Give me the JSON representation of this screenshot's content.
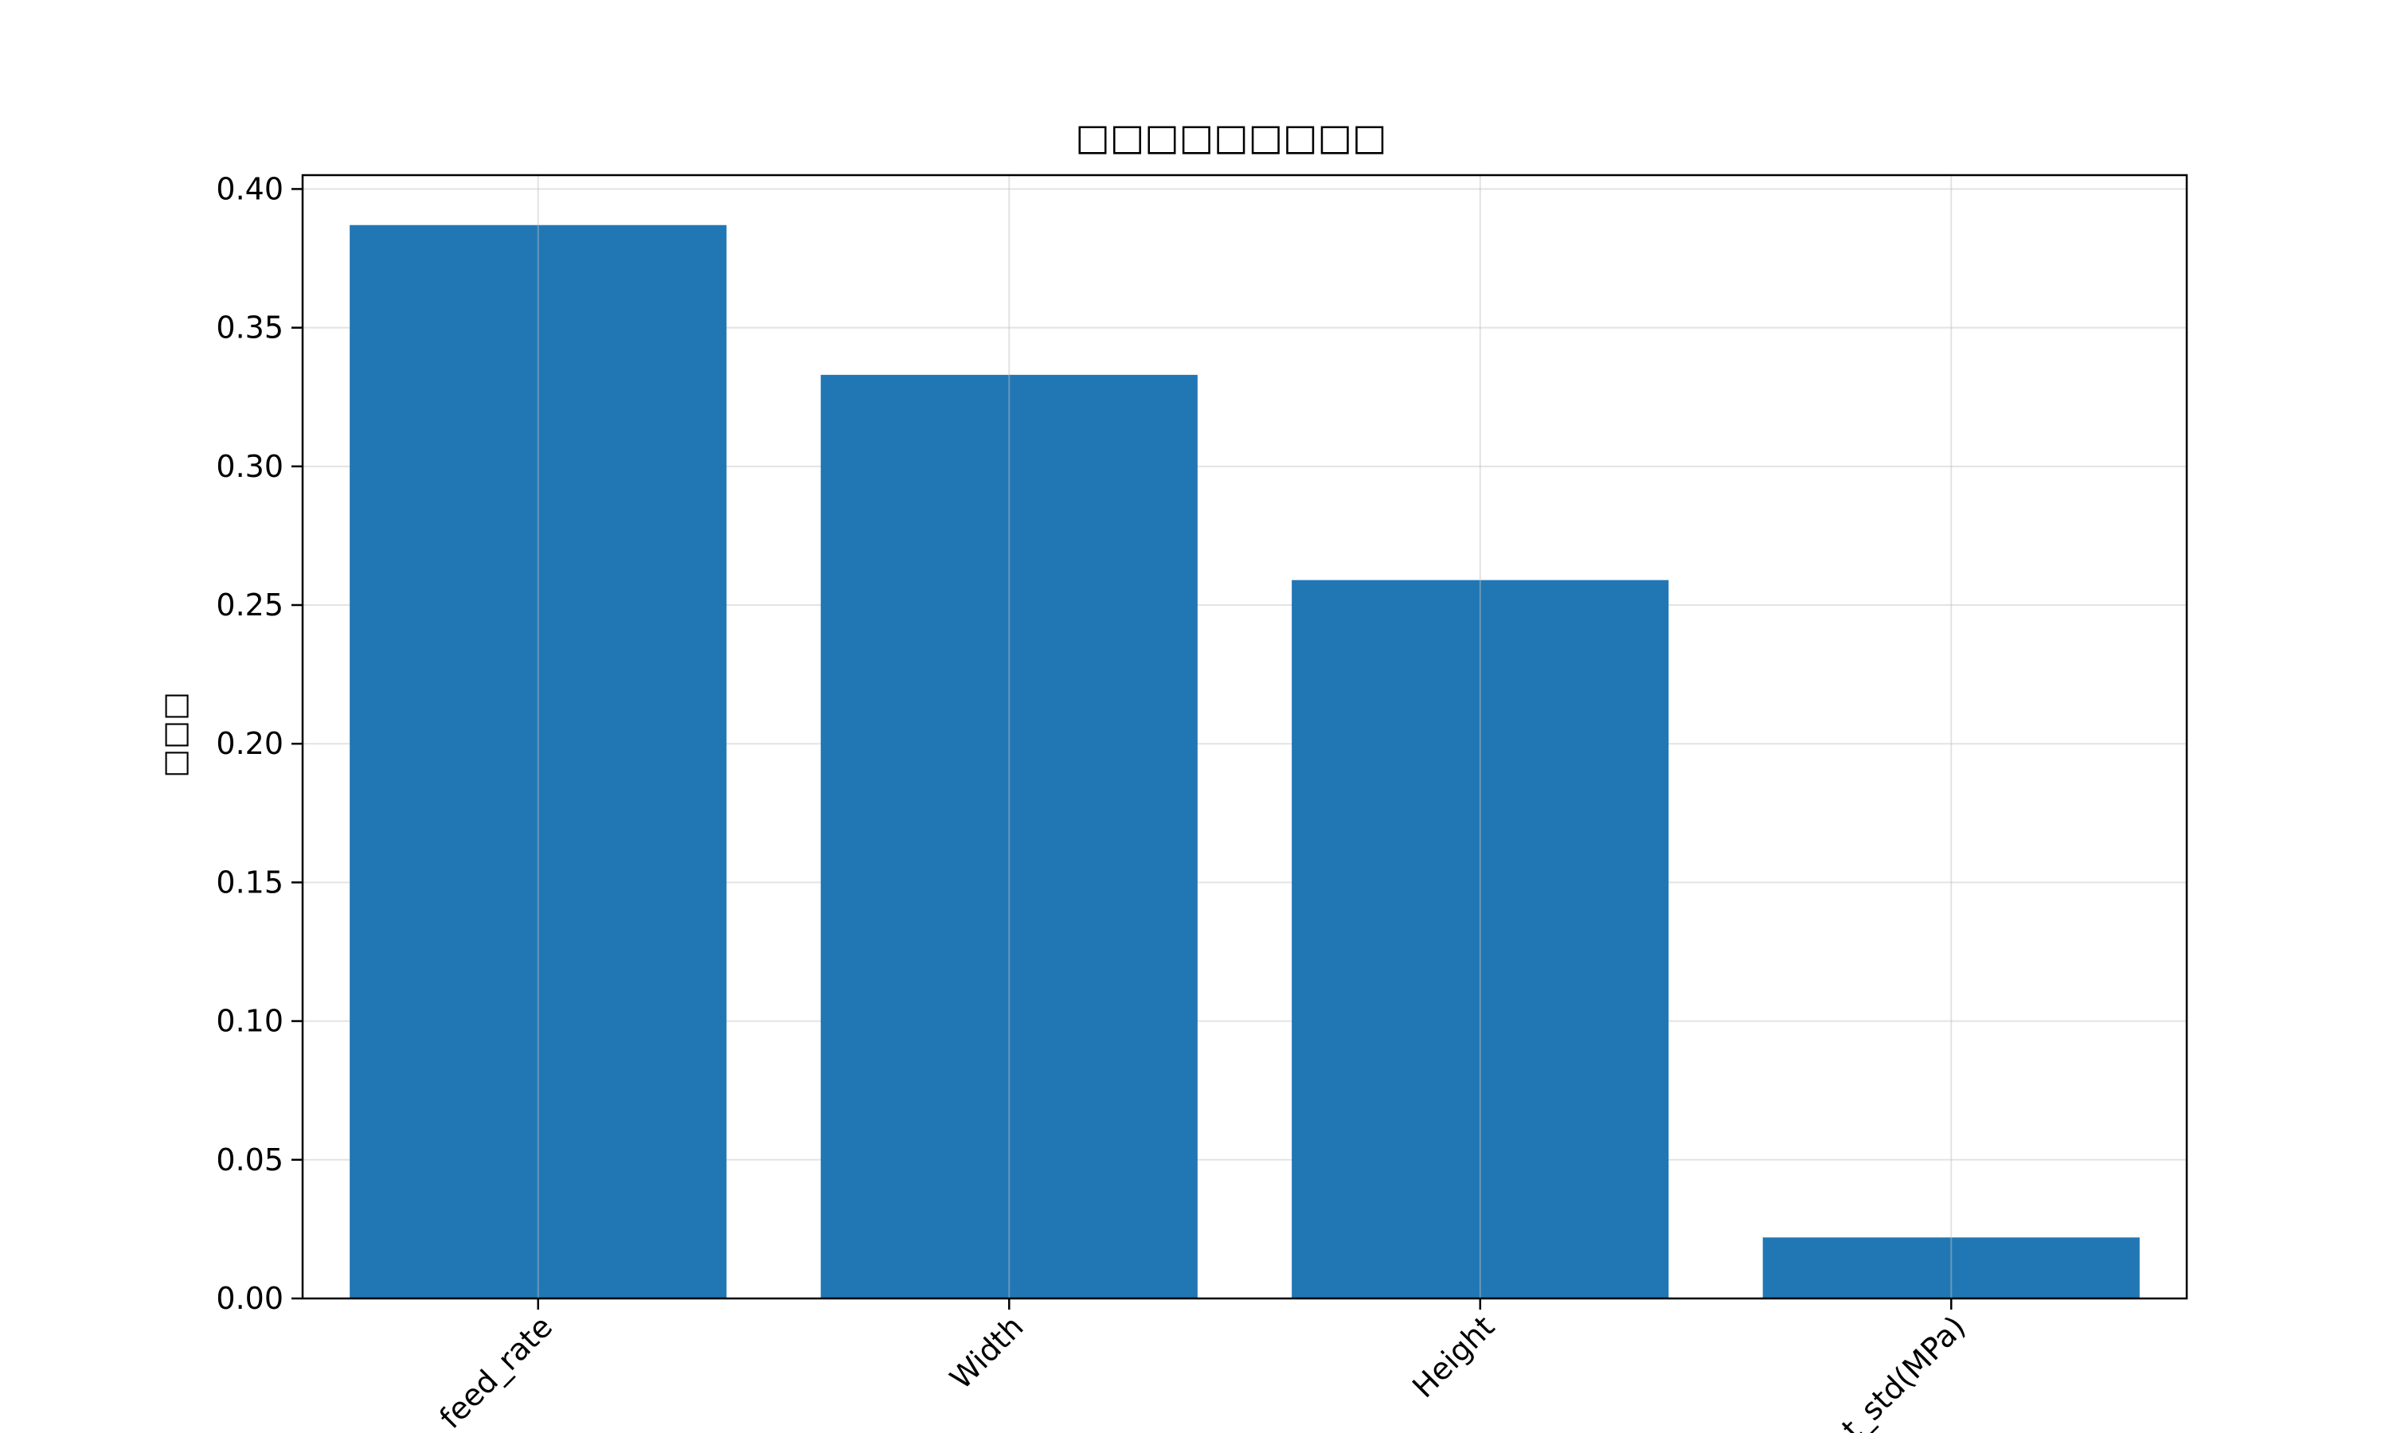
{
  "chart_data": {
    "type": "bar",
    "title": "□□□□□□□□□",
    "xlabel": "",
    "ylabel": "□□□",
    "categories": [
      "feed_rate",
      "Width",
      "Height",
      "t_std(MPa)"
    ],
    "values": [
      0.387,
      0.333,
      0.259,
      0.022
    ],
    "ylim": [
      0,
      0.405
    ],
    "yticks": [
      0.0,
      0.05,
      0.1,
      0.15,
      0.2,
      0.25,
      0.3,
      0.35,
      0.4
    ],
    "ytick_labels": [
      "0.00",
      "0.05",
      "0.10",
      "0.15",
      "0.20",
      "0.25",
      "0.30",
      "0.35",
      "0.40"
    ],
    "xtick_rotation": -45,
    "grid": true,
    "bar_color": "#2077b4",
    "grid_color": "#e3e3e3",
    "axis_color": "#000000"
  }
}
